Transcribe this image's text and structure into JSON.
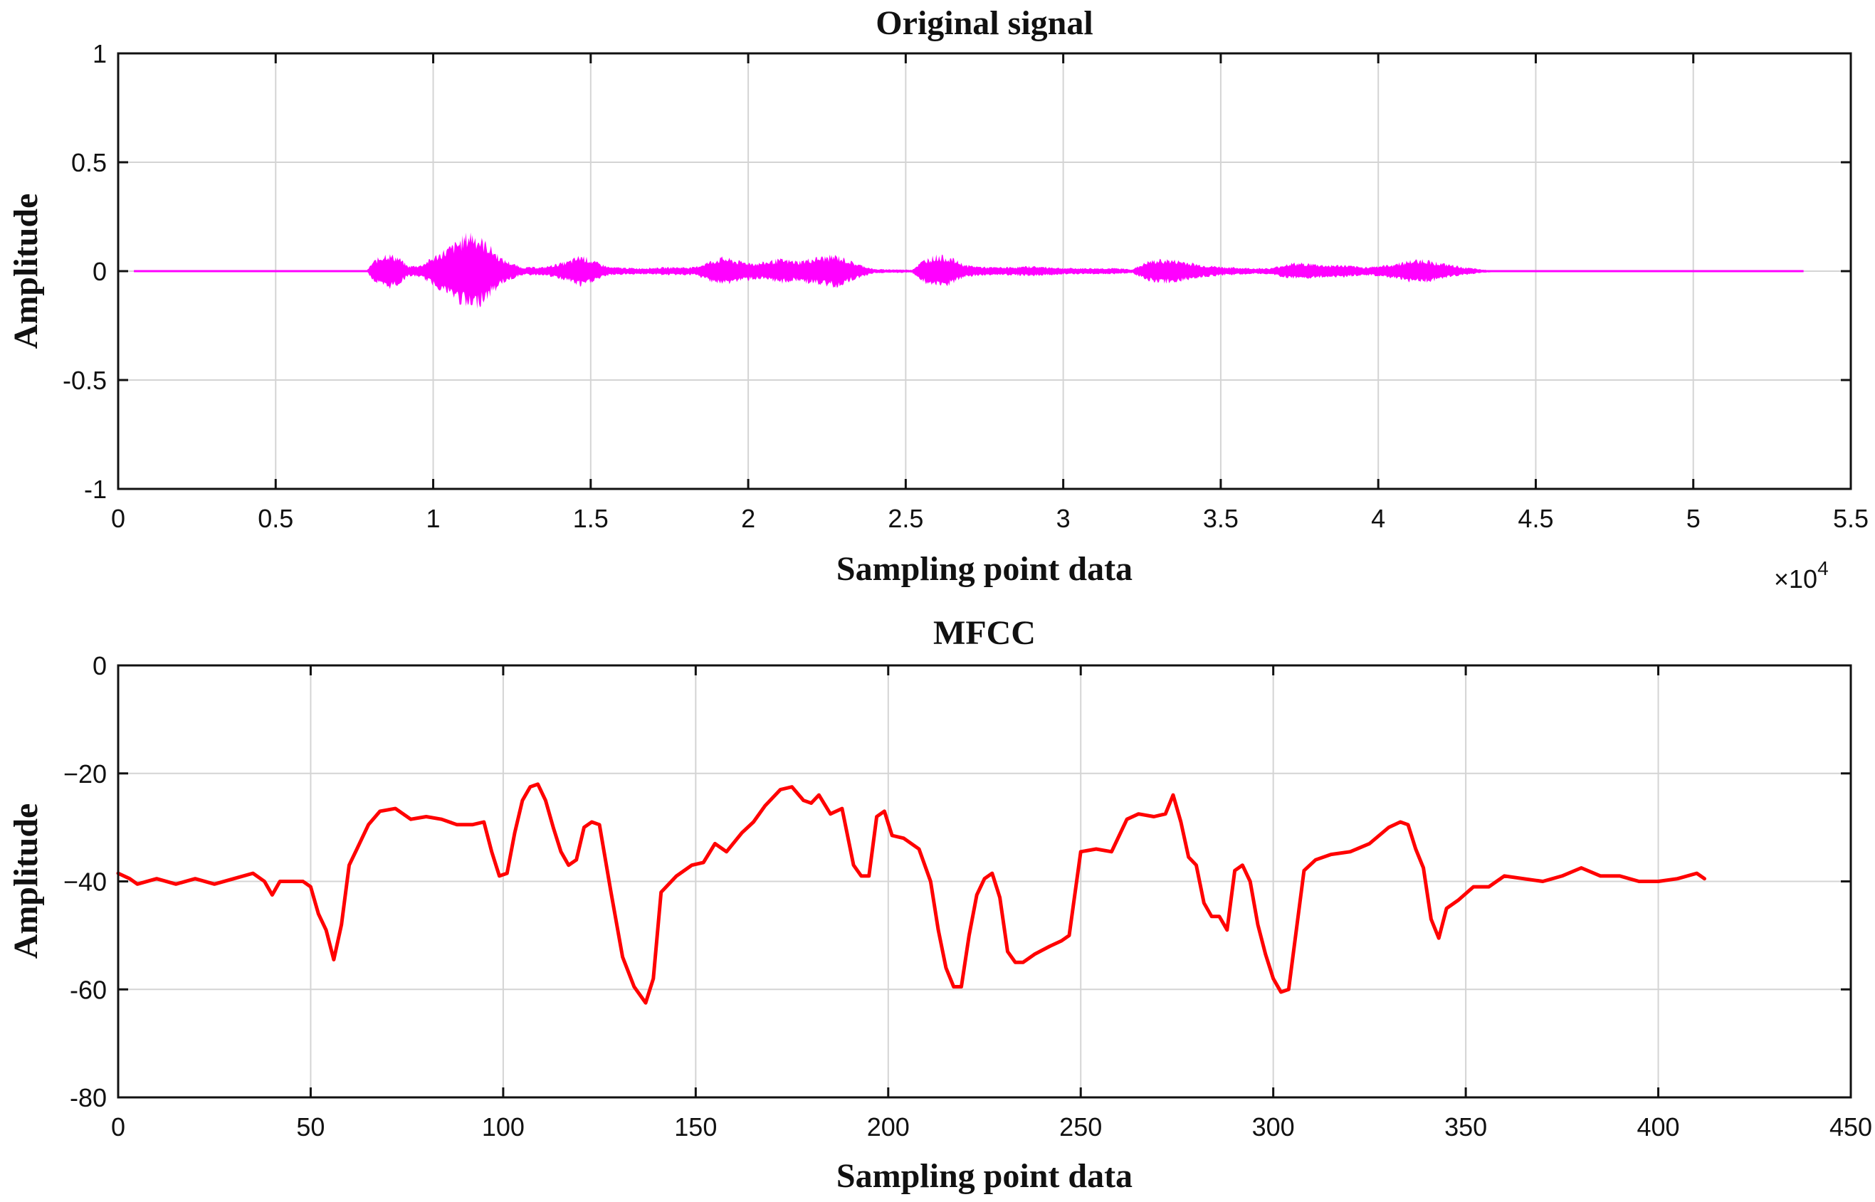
{
  "chart_data": [
    {
      "type": "line",
      "title": "Original signal",
      "xlabel": "Sampling point data",
      "ylabel": "Amplitude",
      "xlim": [
        0,
        55000
      ],
      "ylim": [
        -1,
        1
      ],
      "x_exponent_label": "×10",
      "x_exponent_power": "4",
      "xticks": [
        0,
        5000,
        10000,
        15000,
        20000,
        25000,
        30000,
        35000,
        40000,
        45000,
        50000,
        55000
      ],
      "xtick_labels": [
        "0",
        "0.5",
        "1",
        "1.5",
        "2",
        "2.5",
        "3",
        "3.5",
        "4",
        "4.5",
        "5",
        "5.5"
      ],
      "yticks": [
        1,
        0.5,
        0,
        -0.5,
        -1
      ],
      "ytick_labels": [
        "1",
        "0.5",
        "0",
        "-0.5",
        "-1"
      ],
      "grid": true,
      "color": "#ff00ff",
      "signal_extent": [
        500,
        53500
      ],
      "envelope": [
        [
          500,
          0.004
        ],
        [
          7900,
          0.004
        ],
        [
          8100,
          0.05
        ],
        [
          8500,
          0.09
        ],
        [
          8900,
          0.07
        ],
        [
          9200,
          0.025
        ],
        [
          9600,
          0.03
        ],
        [
          10200,
          0.09
        ],
        [
          10700,
          0.14
        ],
        [
          11200,
          0.2
        ],
        [
          11700,
          0.14
        ],
        [
          12200,
          0.06
        ],
        [
          12800,
          0.02
        ],
        [
          13500,
          0.02
        ],
        [
          14300,
          0.05
        ],
        [
          14700,
          0.08
        ],
        [
          15100,
          0.05
        ],
        [
          15600,
          0.02
        ],
        [
          16500,
          0.015
        ],
        [
          17500,
          0.02
        ],
        [
          18300,
          0.02
        ],
        [
          18800,
          0.05
        ],
        [
          19200,
          0.07
        ],
        [
          19700,
          0.05
        ],
        [
          20300,
          0.04
        ],
        [
          21000,
          0.06
        ],
        [
          21600,
          0.05
        ],
        [
          22200,
          0.07
        ],
        [
          22800,
          0.08
        ],
        [
          23400,
          0.04
        ],
        [
          24000,
          0.01
        ],
        [
          25200,
          0.008
        ],
        [
          25600,
          0.06
        ],
        [
          26000,
          0.08
        ],
        [
          26400,
          0.07
        ],
        [
          26900,
          0.03
        ],
        [
          27600,
          0.02
        ],
        [
          28300,
          0.02
        ],
        [
          29000,
          0.025
        ],
        [
          29600,
          0.02
        ],
        [
          30100,
          0.015
        ],
        [
          31000,
          0.015
        ],
        [
          31600,
          0.015
        ],
        [
          32200,
          0.01
        ],
        [
          32700,
          0.05
        ],
        [
          33200,
          0.06
        ],
        [
          33800,
          0.05
        ],
        [
          34400,
          0.03
        ],
        [
          35200,
          0.02
        ],
        [
          36000,
          0.015
        ],
        [
          36600,
          0.015
        ],
        [
          37200,
          0.04
        ],
        [
          37700,
          0.04
        ],
        [
          38300,
          0.03
        ],
        [
          38900,
          0.03
        ],
        [
          39500,
          0.02
        ],
        [
          40300,
          0.03
        ],
        [
          40900,
          0.05
        ],
        [
          41400,
          0.06
        ],
        [
          42000,
          0.04
        ],
        [
          42700,
          0.02
        ],
        [
          43300,
          0.008
        ],
        [
          43800,
          0.004
        ],
        [
          53500,
          0.004
        ]
      ]
    },
    {
      "type": "line",
      "title": "MFCC",
      "xlabel": "Sampling point data",
      "ylabel": "Amplitude",
      "xlim": [
        0,
        450
      ],
      "ylim": [
        -80,
        0
      ],
      "xticks": [
        0,
        50,
        100,
        150,
        200,
        250,
        300,
        350,
        400,
        450
      ],
      "xtick_labels": [
        "0",
        "50",
        "100",
        "150",
        "200",
        "250",
        "300",
        "350",
        "400",
        "450"
      ],
      "yticks": [
        0,
        -20,
        -40,
        -60,
        -80
      ],
      "ytick_labels": [
        "0",
        "−20",
        "−40",
        "-60",
        "-80"
      ],
      "grid": true,
      "color": "#ff0000",
      "series": [
        {
          "name": "MFCC",
          "x": [
            0,
            3,
            5,
            10,
            15,
            20,
            25,
            30,
            35,
            38,
            40,
            42,
            45,
            48,
            50,
            52,
            54,
            56,
            58,
            60,
            62,
            65,
            68,
            72,
            76,
            80,
            84,
            88,
            92,
            95,
            97,
            99,
            101,
            103,
            105,
            107,
            109,
            111,
            113,
            115,
            117,
            119,
            121,
            123,
            125,
            128,
            131,
            134,
            137,
            139,
            141,
            145,
            149,
            152,
            155,
            158,
            162,
            165,
            168,
            172,
            175,
            178,
            180,
            182,
            185,
            188,
            191,
            193,
            195,
            197,
            199,
            201,
            204,
            208,
            211,
            213,
            215,
            217,
            219,
            221,
            223,
            225,
            227,
            229,
            231,
            233,
            235,
            238,
            242,
            245,
            247,
            250,
            254,
            258,
            260,
            262,
            265,
            269,
            272,
            274,
            276,
            278,
            280,
            282,
            284,
            286,
            288,
            290,
            292,
            294,
            296,
            298,
            300,
            302,
            304,
            306,
            308,
            311,
            315,
            320,
            325,
            330,
            333,
            335,
            337,
            339,
            341,
            343,
            345,
            348,
            352,
            356,
            360,
            365,
            370,
            375,
            380,
            385,
            390,
            395,
            400,
            405,
            410,
            412
          ],
          "y": [
            -38.5,
            -39.5,
            -40.5,
            -39.5,
            -40.5,
            -39.5,
            -40.5,
            -39.5,
            -38.5,
            -40,
            -42.5,
            -40,
            -40,
            -40,
            -41,
            -46,
            -49,
            -54.5,
            -48,
            -37,
            -34,
            -29.5,
            -27,
            -26.5,
            -28.5,
            -28,
            -28.5,
            -29.5,
            -29.5,
            -29,
            -34.5,
            -39,
            -38.5,
            -31,
            -25,
            -22.5,
            -22,
            -25,
            -30,
            -34.5,
            -37,
            -36,
            -30,
            -29,
            -29.5,
            -42,
            -54,
            -59.5,
            -62.5,
            -58,
            -42,
            -39,
            -37,
            -36.5,
            -33,
            -34.5,
            -31,
            -29,
            -26,
            -23,
            -22.5,
            -25,
            -25.5,
            -24,
            -27.5,
            -26.5,
            -37,
            -39,
            -39,
            -28,
            -27,
            -31.5,
            -32,
            -34,
            -40,
            -49,
            -56,
            -59.5,
            -59.5,
            -50,
            -42.5,
            -39.5,
            -38.5,
            -43,
            -53,
            -55,
            -55,
            -53.5,
            -52,
            -51,
            -50,
            -34.5,
            -34,
            -34.5,
            -31.5,
            -28.5,
            -27.5,
            -28,
            -27.5,
            -24,
            -29,
            -35.5,
            -37,
            -44,
            -46.5,
            -46.5,
            -49,
            -38,
            -37,
            -40,
            -48,
            -53.5,
            -58,
            -60.5,
            -60,
            -49,
            -38,
            -36,
            -35,
            -34.5,
            -33,
            -30,
            -29,
            -29.5,
            -34,
            -37.5,
            -47,
            -50.5,
            -45,
            -43.5,
            -41,
            -41,
            -39,
            -39.5,
            -40,
            -39,
            -37.5,
            -39,
            -39,
            -40,
            -40,
            -39.5,
            -38.5,
            -39.5
          ]
        }
      ]
    }
  ]
}
